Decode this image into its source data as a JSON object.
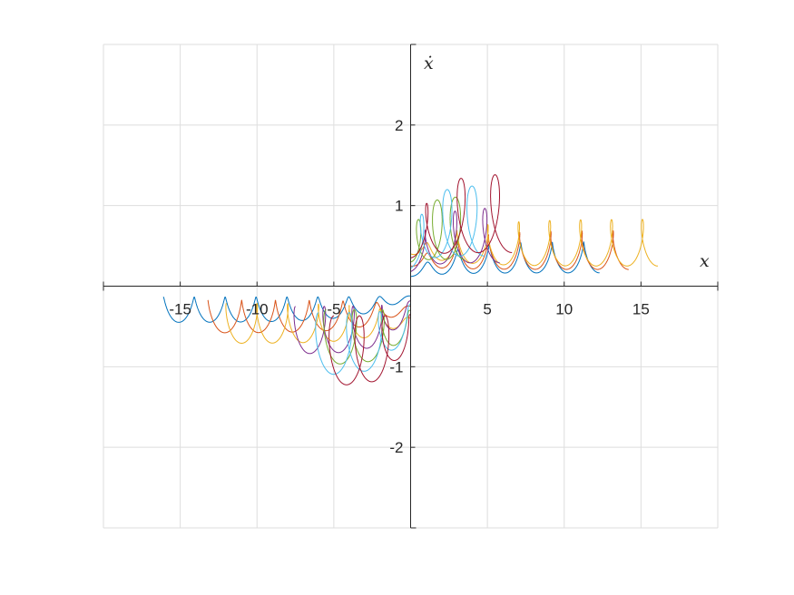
{
  "chart_data": {
    "type": "line",
    "title": "",
    "xlabel": "x",
    "ylabel": "ẋ",
    "xlim": [
      -20,
      20
    ],
    "ylim": [
      -3,
      3
    ],
    "xticks": [
      -15,
      -10,
      -5,
      0,
      5,
      10,
      15
    ],
    "xtick_labels": [
      "-15",
      "-10",
      "-5",
      "",
      "5",
      "10",
      "15"
    ],
    "yticks": [
      -2,
      -1,
      1,
      2
    ],
    "ytick_labels": [
      "-2",
      "-1",
      "1",
      "2"
    ],
    "grid": true,
    "legend": "none",
    "series": [
      {
        "color": "#0072BD",
        "offset": 0.12,
        "x_end": 12.3,
        "x_start": -16.1
      },
      {
        "color": "#D95319",
        "offset": 0.25,
        "x_end": 14.2,
        "x_start": -13.2
      },
      {
        "color": "#EDB120",
        "offset": 0.4,
        "x_end": 16.1,
        "x_start": -12.0
      },
      {
        "color": "#7E2F8E",
        "offset": 0.18,
        "x_end": 5.8,
        "x_start": -7.5
      },
      {
        "color": "#77AC30",
        "offset": 0.3,
        "x_end": 3.5,
        "x_start": -5.5
      },
      {
        "color": "#4DBEEE",
        "offset": 0.22,
        "x_end": 4.8,
        "x_start": -6.0
      },
      {
        "color": "#A2142F",
        "offset": 0.35,
        "x_end": 6.6,
        "x_start": -5.0
      }
    ]
  }
}
